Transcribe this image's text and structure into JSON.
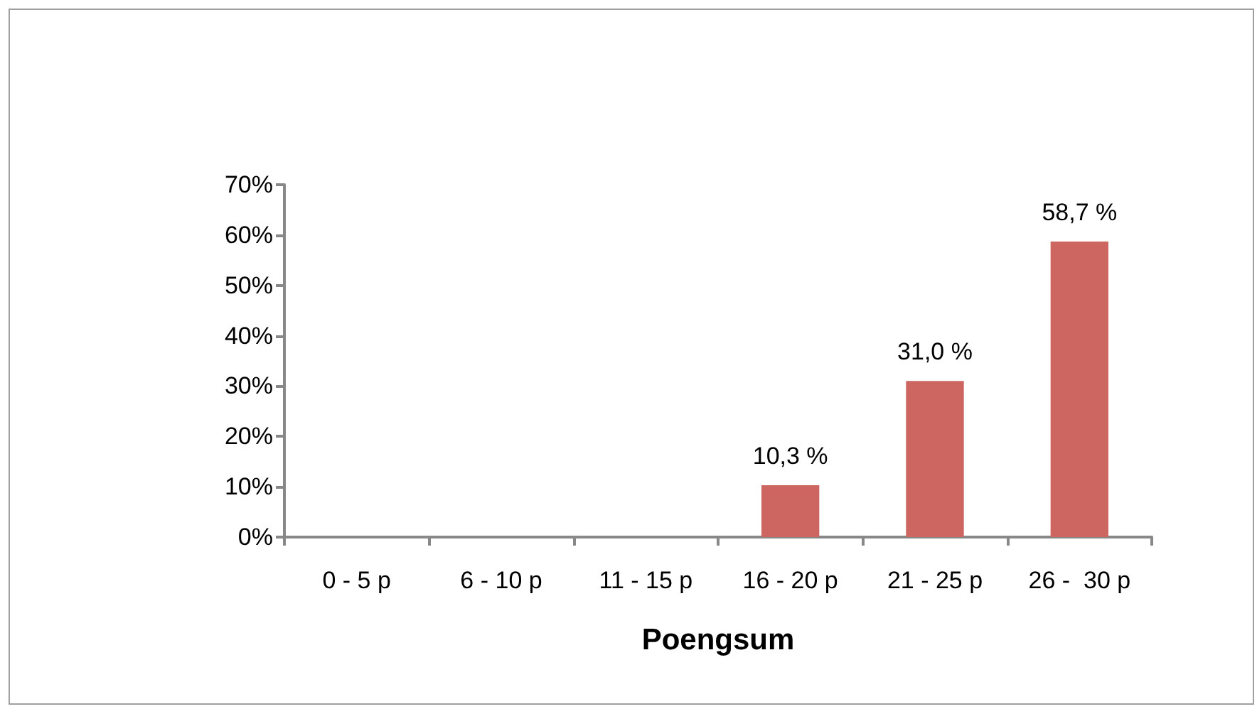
{
  "chart_data": {
    "type": "bar",
    "xlabel": "Poengsum",
    "categories": [
      "0 - 5 p",
      "6 - 10 p",
      "11 - 15 p",
      "16 - 20 p",
      "21 - 25 p",
      "26 -  30 p"
    ],
    "values": [
      0,
      0,
      0,
      10.3,
      31.0,
      58.7
    ],
    "value_labels": [
      null,
      null,
      null,
      "10,3 %",
      "31,0 %",
      "58,7 %"
    ],
    "color": "#cd6660",
    "ylim": [
      0,
      70
    ],
    "yticks": [
      {
        "value": 0,
        "label": "0%"
      },
      {
        "value": 10,
        "label": "10%"
      },
      {
        "value": 20,
        "label": "20%"
      },
      {
        "value": 30,
        "label": "30%"
      },
      {
        "value": 40,
        "label": "40%"
      },
      {
        "value": 50,
        "label": "50%"
      },
      {
        "value": 60,
        "label": "60%"
      },
      {
        "value": 70,
        "label": "70%"
      }
    ],
    "grid": false
  }
}
